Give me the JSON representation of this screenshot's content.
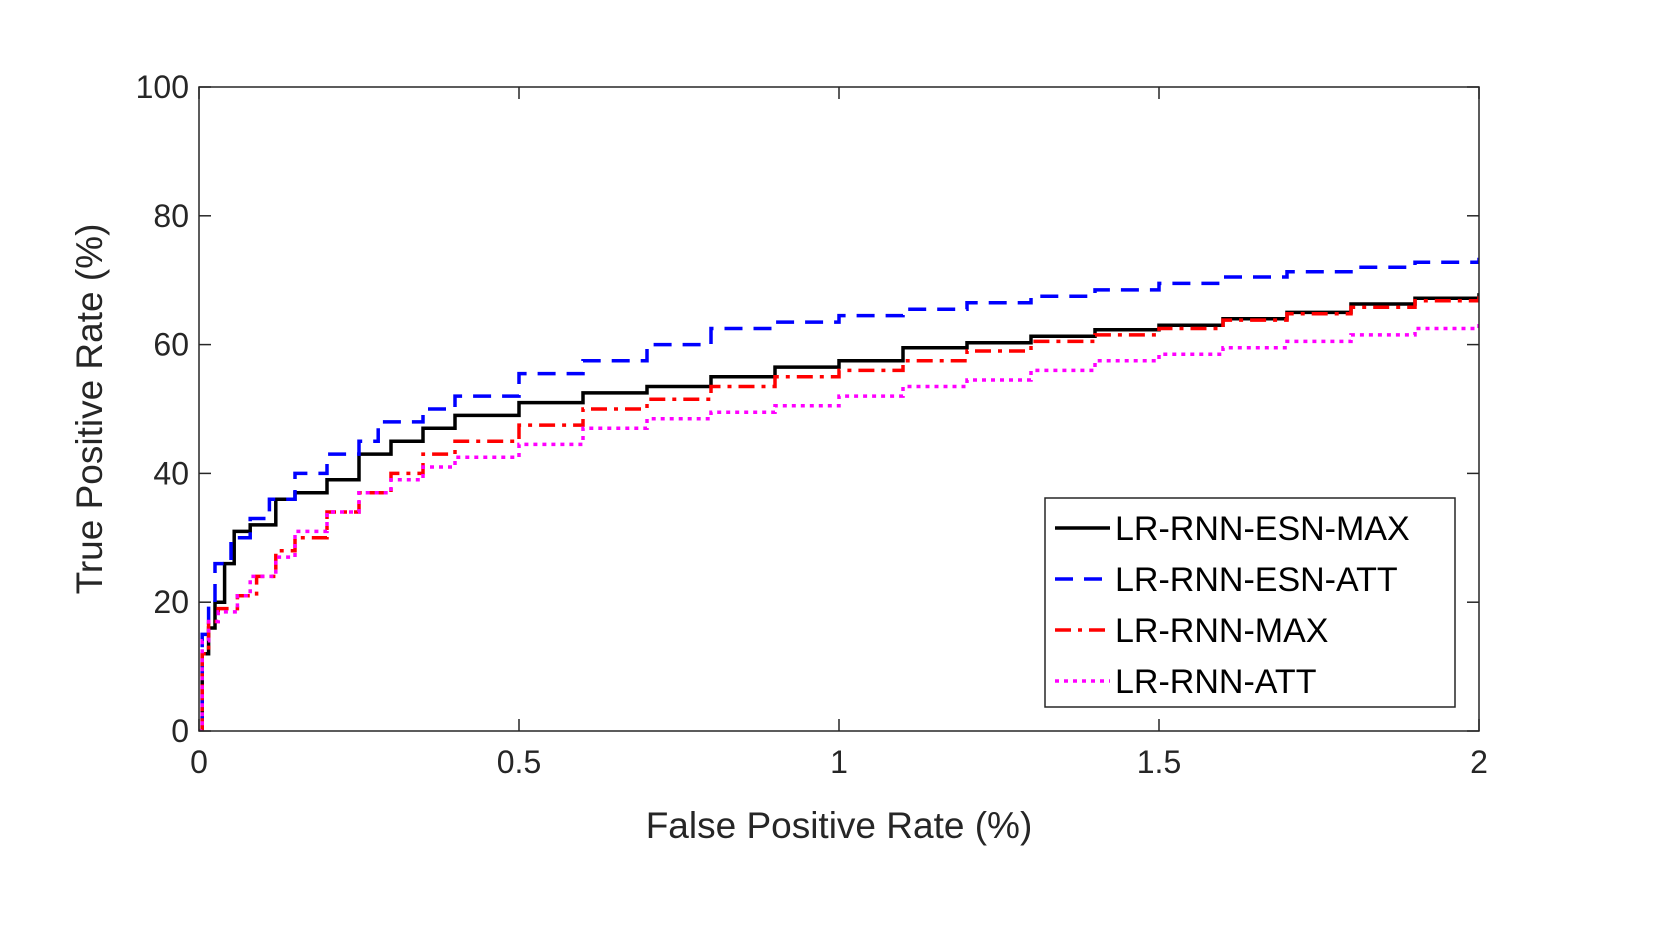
{
  "chart_data": {
    "type": "line",
    "xlabel": "False Positive Rate (%)",
    "ylabel": "True Positive Rate (%)",
    "xlim": [
      0,
      2
    ],
    "ylim": [
      0,
      100
    ],
    "xticks": [
      0,
      0.5,
      1,
      1.5,
      2
    ],
    "xtick_labels": [
      "0",
      "0.5",
      "1",
      "1.5",
      "2"
    ],
    "yticks": [
      0,
      20,
      40,
      60,
      80,
      100
    ],
    "ytick_labels": [
      "0",
      "20",
      "40",
      "60",
      "80",
      "100"
    ],
    "grid": false,
    "legend_position": "bottom-right",
    "series": [
      {
        "name": "LR-RNN-ESN-MAX",
        "color": "#000000",
        "dash": "solid",
        "points": [
          [
            0,
            0
          ],
          [
            0.005,
            12
          ],
          [
            0.015,
            16
          ],
          [
            0.025,
            20
          ],
          [
            0.04,
            26
          ],
          [
            0.055,
            31
          ],
          [
            0.08,
            32
          ],
          [
            0.11,
            32
          ],
          [
            0.12,
            36
          ],
          [
            0.15,
            37
          ],
          [
            0.2,
            39
          ],
          [
            0.25,
            43
          ],
          [
            0.3,
            45
          ],
          [
            0.35,
            47
          ],
          [
            0.4,
            49
          ],
          [
            0.5,
            51
          ],
          [
            0.6,
            52.5
          ],
          [
            0.7,
            53.5
          ],
          [
            0.8,
            55
          ],
          [
            0.9,
            56.5
          ],
          [
            1.0,
            57.5
          ],
          [
            1.1,
            59.5
          ],
          [
            1.2,
            60.3
          ],
          [
            1.3,
            61.3
          ],
          [
            1.4,
            62.3
          ],
          [
            1.5,
            63
          ],
          [
            1.6,
            64
          ],
          [
            1.7,
            65
          ],
          [
            1.8,
            66.3
          ],
          [
            1.9,
            67.2
          ],
          [
            2.0,
            68
          ]
        ]
      },
      {
        "name": "LR-RNN-ESN-ATT",
        "color": "#0000ff",
        "dash": "dashed",
        "points": [
          [
            0,
            0
          ],
          [
            0.005,
            15
          ],
          [
            0.015,
            20
          ],
          [
            0.025,
            26
          ],
          [
            0.05,
            30
          ],
          [
            0.08,
            33
          ],
          [
            0.11,
            36
          ],
          [
            0.15,
            40
          ],
          [
            0.2,
            43
          ],
          [
            0.25,
            45
          ],
          [
            0.28,
            48
          ],
          [
            0.35,
            50
          ],
          [
            0.4,
            52
          ],
          [
            0.5,
            55.5
          ],
          [
            0.6,
            57.5
          ],
          [
            0.7,
            60
          ],
          [
            0.8,
            62.5
          ],
          [
            0.9,
            63.5
          ],
          [
            1.0,
            64.5
          ],
          [
            1.1,
            65.5
          ],
          [
            1.2,
            66.5
          ],
          [
            1.3,
            67.5
          ],
          [
            1.4,
            68.5
          ],
          [
            1.5,
            69.5
          ],
          [
            1.6,
            70.5
          ],
          [
            1.7,
            71.3
          ],
          [
            1.8,
            72
          ],
          [
            1.9,
            72.8
          ],
          [
            2.0,
            73.5
          ]
        ]
      },
      {
        "name": "LR-RNN-MAX",
        "color": "#ff0000",
        "dash": "dashdot",
        "points": [
          [
            0,
            0
          ],
          [
            0.005,
            12
          ],
          [
            0.015,
            17
          ],
          [
            0.03,
            19
          ],
          [
            0.06,
            21
          ],
          [
            0.09,
            24
          ],
          [
            0.12,
            28
          ],
          [
            0.15,
            30
          ],
          [
            0.2,
            34
          ],
          [
            0.25,
            37
          ],
          [
            0.3,
            40
          ],
          [
            0.35,
            43
          ],
          [
            0.4,
            45
          ],
          [
            0.5,
            47.5
          ],
          [
            0.6,
            50
          ],
          [
            0.7,
            51.5
          ],
          [
            0.8,
            53.5
          ],
          [
            0.9,
            55
          ],
          [
            1.0,
            56
          ],
          [
            1.1,
            57.5
          ],
          [
            1.2,
            59
          ],
          [
            1.3,
            60.5
          ],
          [
            1.4,
            61.5
          ],
          [
            1.5,
            62.5
          ],
          [
            1.6,
            63.8
          ],
          [
            1.7,
            64.8
          ],
          [
            1.8,
            65.8
          ],
          [
            1.9,
            66.8
          ],
          [
            2.0,
            67.5
          ]
        ]
      },
      {
        "name": "LR-RNN-ATT",
        "color": "#ff00ff",
        "dash": "dotted",
        "points": [
          [
            0,
            0
          ],
          [
            0.005,
            14
          ],
          [
            0.015,
            17
          ],
          [
            0.03,
            18.5
          ],
          [
            0.06,
            21
          ],
          [
            0.08,
            24
          ],
          [
            0.12,
            27
          ],
          [
            0.15,
            31
          ],
          [
            0.2,
            34
          ],
          [
            0.25,
            37
          ],
          [
            0.3,
            39
          ],
          [
            0.35,
            41
          ],
          [
            0.4,
            42.5
          ],
          [
            0.5,
            44.5
          ],
          [
            0.6,
            47
          ],
          [
            0.7,
            48.5
          ],
          [
            0.8,
            49.5
          ],
          [
            0.9,
            50.5
          ],
          [
            1.0,
            52
          ],
          [
            1.1,
            53.5
          ],
          [
            1.2,
            54.5
          ],
          [
            1.3,
            56
          ],
          [
            1.4,
            57.5
          ],
          [
            1.5,
            58.5
          ],
          [
            1.6,
            59.5
          ],
          [
            1.7,
            60.5
          ],
          [
            1.8,
            61.5
          ],
          [
            1.9,
            62.5
          ],
          [
            2.0,
            63.3
          ]
        ]
      }
    ]
  }
}
